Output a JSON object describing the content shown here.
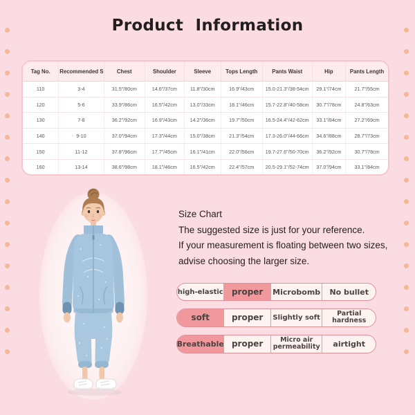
{
  "page": {
    "title": "Product  Information"
  },
  "size_table": {
    "headers": [
      "Tag No.",
      "Recommended Size",
      "Chest",
      "Shoulder",
      "Sleeve",
      "Tops Length",
      "Pants Waist",
      "Hip",
      "Pants Length"
    ],
    "rows": [
      [
        "110",
        "3-4",
        "31.5\"/80cm",
        "14.6\"/37cm",
        "11.8\"/30cm",
        "16.9\"/43cm",
        "15.0-21.3\"/38-54cm",
        "29.1\"/74cm",
        "21.7\"/55cm"
      ],
      [
        "120",
        "5-6",
        "33.9\"/86cm",
        "16.5\"/42cm",
        "13.0\"/33cm",
        "18.1\"/46cm",
        "15.7-22.8\"/40-58cm",
        "30.7\"/78cm",
        "24.8\"/63cm"
      ],
      [
        "130",
        "7-8",
        "36.2\"/92cm",
        "16.9\"/43cm",
        "14.2\"/36cm",
        "19.7\"/50cm",
        "16.5-24.4\"/42-62cm",
        "33.1\"/84cm",
        "27.2\"/69cm"
      ],
      [
        "140",
        "9-10",
        "37.0\"/94cm",
        "17.3\"/44cm",
        "15.0\"/38cm",
        "21.3\"/54cm",
        "17.3-26.0\"/44-66cm",
        "34.6\"/88cm",
        "28.7\"/73cm"
      ],
      [
        "150",
        "11-12",
        "37.8\"/96cm",
        "17.7\"/45cm",
        "16.1\"/41cm",
        "22.0\"/56cm",
        "19.7-27.6\"/50-70cm",
        "36.2\"/92cm",
        "30.7\"/78cm"
      ],
      [
        "160",
        "13-14",
        "38.6\"/98cm",
        "18.1\"/46cm",
        "16.5\"/42cm",
        "22.4\"/57cm",
        "20.5-29.1\"/52-74cm",
        "37.0\"/94cm",
        "33.1\"/84cm"
      ]
    ]
  },
  "size_chart_note": {
    "heading": "Size Chart",
    "lines": [
      "The suggested size is just for your reference.",
      "If your measurement is floating between two sizes,",
      "advise choosing the larger size."
    ]
  },
  "attributes": {
    "rows": [
      {
        "cells": [
          {
            "label": "high-elastic",
            "highlighted": false
          },
          {
            "label": "proper",
            "highlighted": true
          },
          {
            "label": "Microbomb",
            "highlighted": false
          },
          {
            "label": "No bullet",
            "highlighted": false
          }
        ]
      },
      {
        "cells": [
          {
            "label": "soft",
            "highlighted": true
          },
          {
            "label": "proper",
            "highlighted": false
          },
          {
            "label": "Slightly soft",
            "highlighted": false
          },
          {
            "label": "Partial hardness",
            "highlighted": false
          }
        ]
      },
      {
        "cells": [
          {
            "label": "Breathable",
            "highlighted": true
          },
          {
            "label": "proper",
            "highlighted": false
          },
          {
            "label": "Micro air permeability",
            "highlighted": false
          },
          {
            "label": "airtight",
            "highlighted": false
          }
        ]
      }
    ]
  },
  "product_photo": {
    "description": "Girl with hair bun wearing light blue fleece zip-up pajama set and white sneakers"
  },
  "colors": {
    "background_pink": "#fbdce3",
    "dot_peach": "#f5b795",
    "table_border_pink": "#f4c6cd",
    "table_header_pink": "#fdebed",
    "pill_highlight_pink": "#f0989c",
    "pill_light": "#fdf3f0",
    "pill_border": "#e08f99",
    "pajama_blue": "#a6c5de"
  }
}
